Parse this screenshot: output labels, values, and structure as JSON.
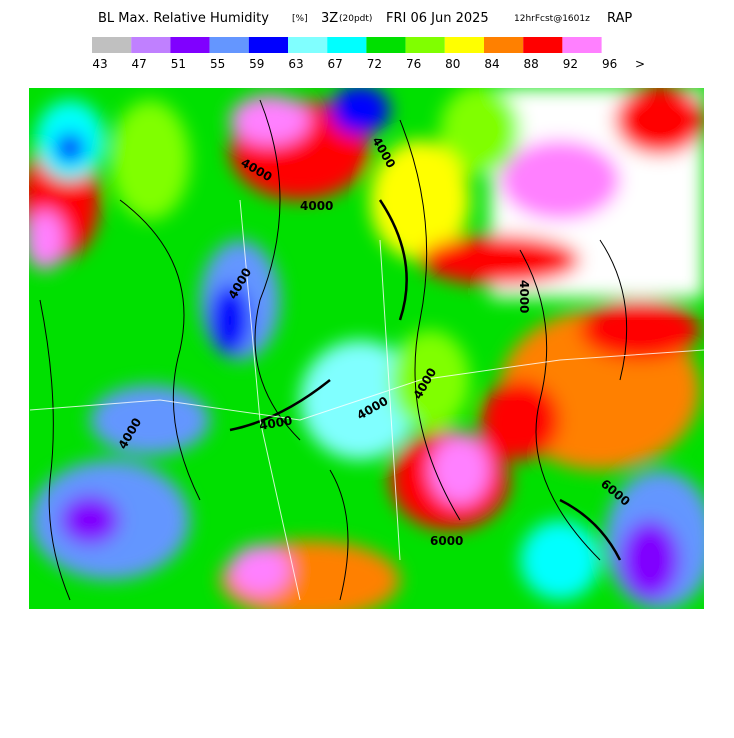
{
  "header": {
    "title": "BL Max. Relative Humidity",
    "units": "[%]",
    "valid": "3Z",
    "local": "(20pdt)",
    "date": "FRI 06 Jun 2025",
    "forecast": "12hrFcst@1601z",
    "model": "RAP"
  },
  "legend": {
    "colors": [
      "#c0c0c0",
      "#c080ff",
      "#8000ff",
      "#6496ff",
      "#0000ff",
      "#80ffff",
      "#00ffff",
      "#00e000",
      "#80ff00",
      "#ffff00",
      "#ff8000",
      "#ff0000",
      "#ff80ff"
    ],
    "labels": [
      "43",
      "47",
      "51",
      "55",
      "59",
      "63",
      "67",
      "72",
      "76",
      "80",
      "84",
      "88",
      "92",
      "96"
    ],
    "more": ">"
  },
  "map": {
    "contour_labels": [
      "4000",
      "4000",
      "4000",
      "4000",
      "4000",
      "4000",
      "4000",
      "4000",
      "4000",
      "6000",
      "6000"
    ]
  }
}
